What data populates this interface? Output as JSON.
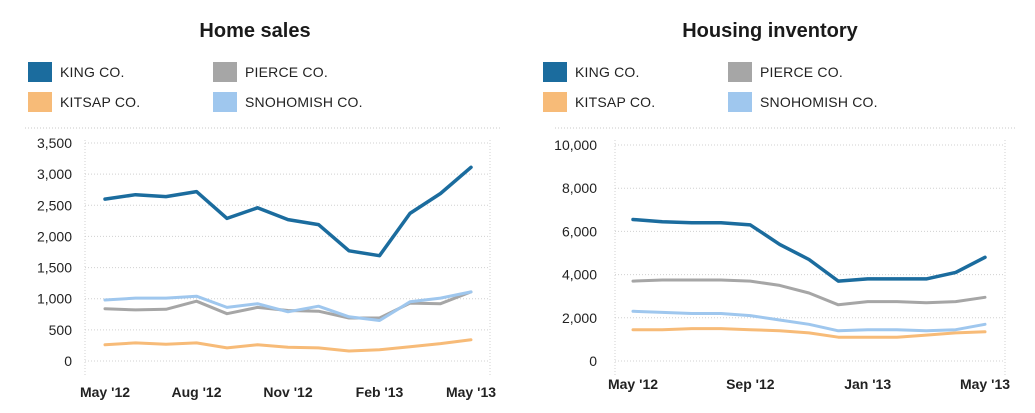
{
  "chart_data": [
    {
      "type": "line",
      "title": "Home sales",
      "xlabel": "",
      "ylabel": "",
      "ylim": [
        0,
        3500
      ],
      "y_ticks": [
        "0",
        "500",
        "1,000",
        "1,500",
        "2,000",
        "2,500",
        "3,000",
        "3,500"
      ],
      "y_tick_values": [
        0,
        500,
        1000,
        1500,
        2000,
        2500,
        3000,
        3500
      ],
      "x": [
        "May '12",
        "Jun '12",
        "Jul '12",
        "Aug '12",
        "Sep '12",
        "Oct '12",
        "Nov '12",
        "Dec '12",
        "Jan '13",
        "Feb '13",
        "Mar '13",
        "Apr '13",
        "May '13"
      ],
      "x_tick_labels": [
        "May '12",
        "Aug '12",
        "Nov '12",
        "Feb '13",
        "May '13"
      ],
      "x_tick_index": [
        0,
        3,
        6,
        9,
        12
      ],
      "grid": "horizontal",
      "legend": "top",
      "series": [
        {
          "name": "KING CO.",
          "color": "#1b6c9e",
          "values": [
            2600,
            2670,
            2640,
            2720,
            2290,
            2460,
            2270,
            2190,
            1770,
            1690,
            2370,
            2690,
            3110
          ]
        },
        {
          "name": "PIERCE CO.",
          "color": "#a6a6a6",
          "values": [
            840,
            820,
            830,
            960,
            760,
            860,
            810,
            800,
            690,
            690,
            930,
            920,
            1110
          ]
        },
        {
          "name": "KITSAP CO.",
          "color": "#f7bb78",
          "values": [
            260,
            290,
            270,
            290,
            210,
            260,
            220,
            210,
            160,
            180,
            230,
            280,
            340
          ]
        },
        {
          "name": "SNOHOMISH CO.",
          "color": "#9fc7ee",
          "values": [
            980,
            1010,
            1010,
            1040,
            860,
            920,
            790,
            880,
            710,
            650,
            950,
            1010,
            1110
          ]
        }
      ]
    },
    {
      "type": "line",
      "title": "Housing inventory",
      "xlabel": "",
      "ylabel": "",
      "ylim": [
        0,
        10000
      ],
      "y_ticks": [
        "0",
        "2,000",
        "4,000",
        "6,000",
        "8,000",
        "10,000"
      ],
      "y_tick_values": [
        0,
        2000,
        4000,
        6000,
        8000,
        10000
      ],
      "x": [
        "May '12",
        "Jun '12",
        "Jul '12",
        "Aug '12",
        "Sep '12",
        "Oct '12",
        "Nov '12",
        "Dec '12",
        "Jan '13",
        "Feb '13",
        "Mar '13",
        "Apr '13",
        "May '13"
      ],
      "x_tick_labels": [
        "May '12",
        "Sep '12",
        "Jan '13",
        "May '13"
      ],
      "x_tick_index": [
        0,
        4,
        8,
        12
      ],
      "grid": "horizontal",
      "legend": "top",
      "series": [
        {
          "name": "KING CO.",
          "color": "#1b6c9e",
          "values": [
            6550,
            6450,
            6400,
            6400,
            6300,
            5400,
            4700,
            3700,
            3800,
            3800,
            3800,
            4100,
            4800
          ]
        },
        {
          "name": "PIERCE CO.",
          "color": "#a6a6a6",
          "values": [
            3700,
            3750,
            3750,
            3750,
            3700,
            3500,
            3150,
            2600,
            2750,
            2750,
            2700,
            2750,
            2950
          ]
        },
        {
          "name": "KITSAP CO.",
          "color": "#f7bb78",
          "values": [
            1450,
            1450,
            1500,
            1500,
            1450,
            1400,
            1300,
            1100,
            1100,
            1100,
            1200,
            1300,
            1350
          ]
        },
        {
          "name": "SNOHOMISH CO.",
          "color": "#9fc7ee",
          "values": [
            2300,
            2250,
            2200,
            2200,
            2100,
            1900,
            1700,
            1400,
            1450,
            1450,
            1400,
            1450,
            1700
          ]
        }
      ]
    }
  ]
}
